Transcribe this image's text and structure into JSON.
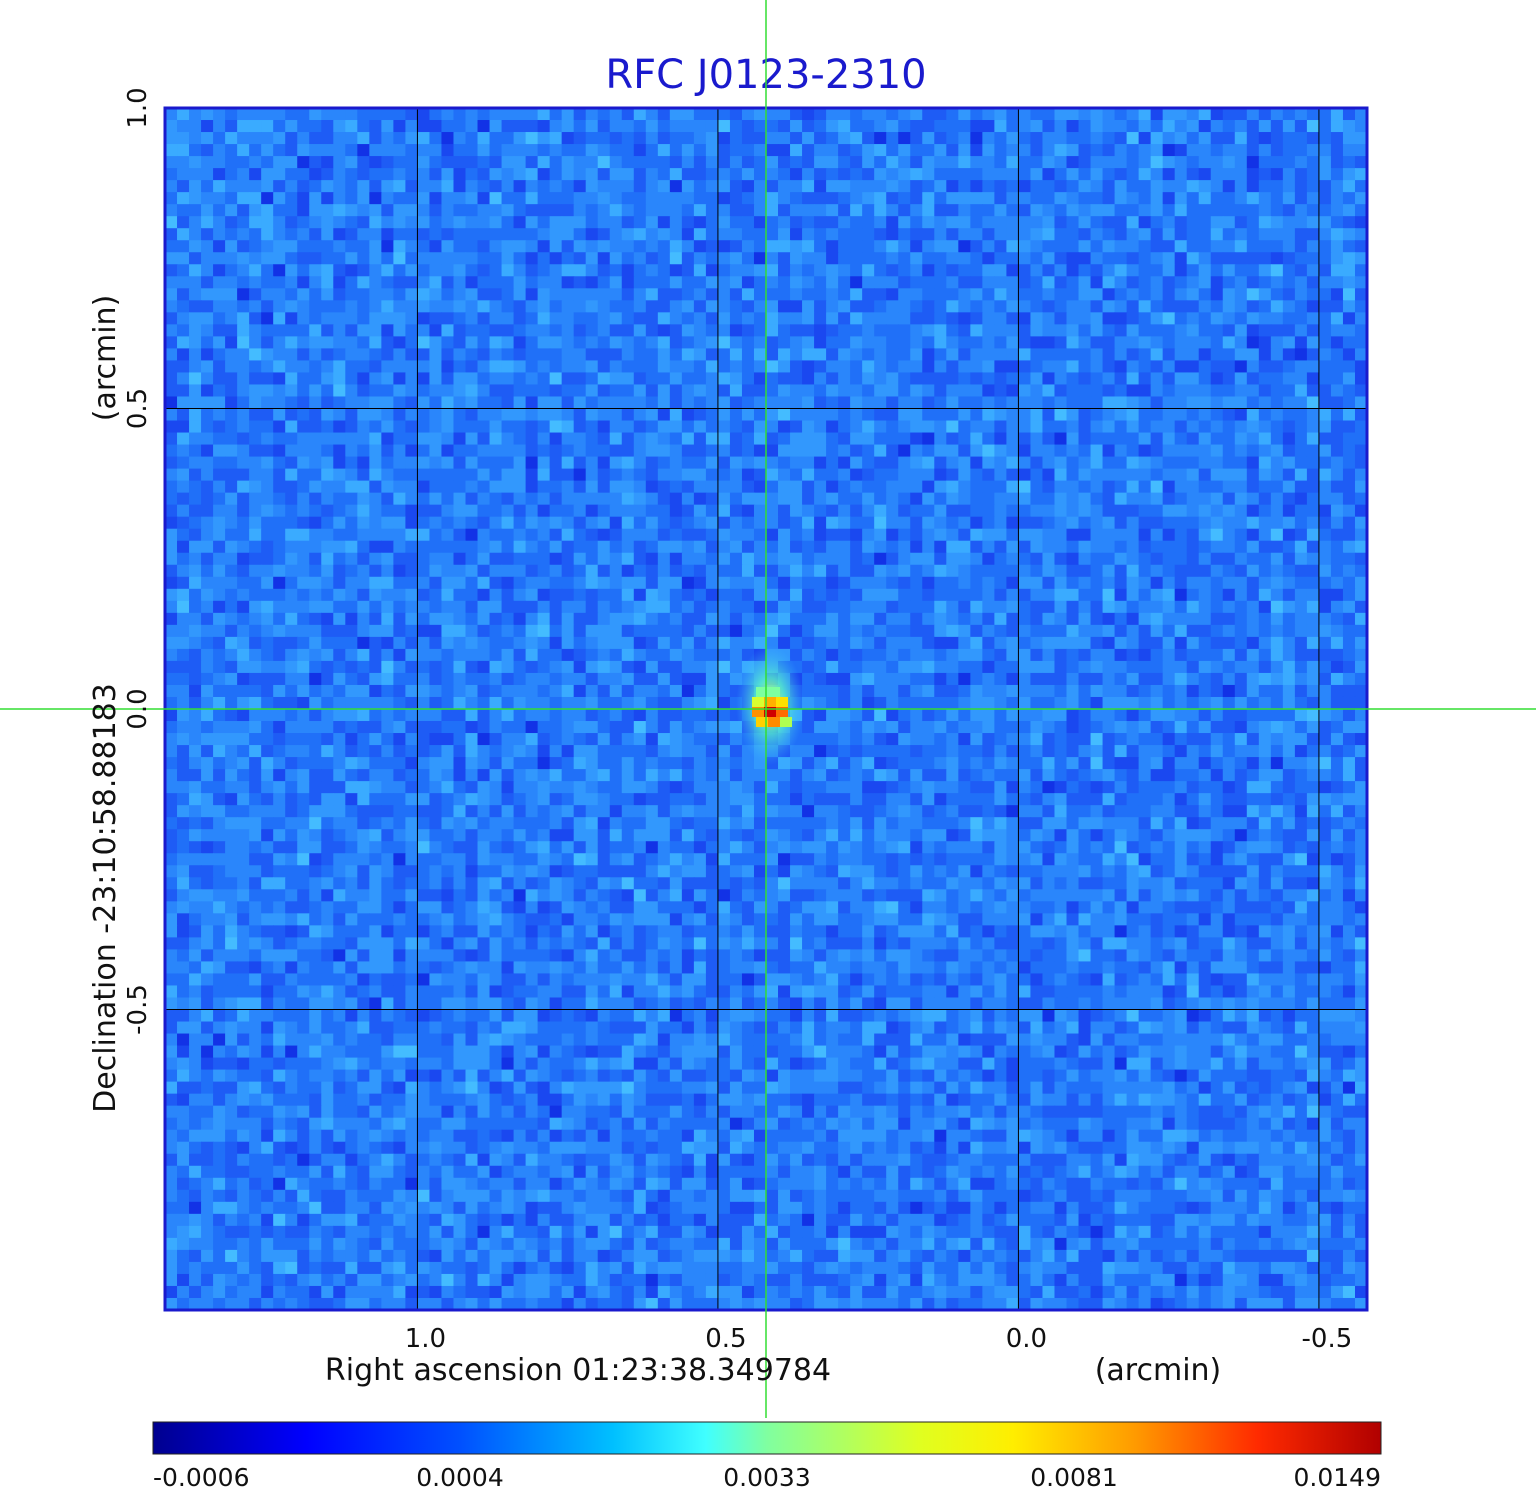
{
  "chart_data": {
    "type": "heatmap",
    "title": "RFC J0123-2310",
    "xlabel": "Right ascension  01:23:38.349784",
    "xunit": "(arcmin)",
    "ylabel": "Declination  -23:10:58.88183",
    "yunit": "(arcmin)",
    "xlim": [
      1.42,
      -0.58
    ],
    "ylim": [
      -1.0,
      1.0
    ],
    "x_ticks": [
      {
        "value": 1.0,
        "label": "1.0"
      },
      {
        "value": 0.5,
        "label": "0.5"
      },
      {
        "value": 0.0,
        "label": "0.0"
      },
      {
        "value": -0.5,
        "label": "-0.5"
      }
    ],
    "y_ticks": [
      {
        "value": 1.0,
        "label": "1.0"
      },
      {
        "value": 0.5,
        "label": "0.5"
      },
      {
        "value": 0.0,
        "label": "0.0"
      },
      {
        "value": -0.5,
        "label": "-0.5"
      }
    ],
    "grid": true,
    "crosshair": {
      "x": 0.42,
      "y": 0.0,
      "color": "#33dd33"
    },
    "source_peak": {
      "x": 0.42,
      "y": 0.0,
      "value": 0.0149
    },
    "colormap": "jet",
    "colorbar": {
      "placement": "bottom",
      "ticks": [
        "-0.0006",
        "0.0004",
        "0.0033",
        "0.0081",
        "0.0149"
      ],
      "min": -0.0006,
      "max": 0.0149
    },
    "colors": {
      "title": "#1a1acd",
      "frame": "#1a1acd",
      "grid": "#000000",
      "crosshair": "#33dd33"
    }
  }
}
